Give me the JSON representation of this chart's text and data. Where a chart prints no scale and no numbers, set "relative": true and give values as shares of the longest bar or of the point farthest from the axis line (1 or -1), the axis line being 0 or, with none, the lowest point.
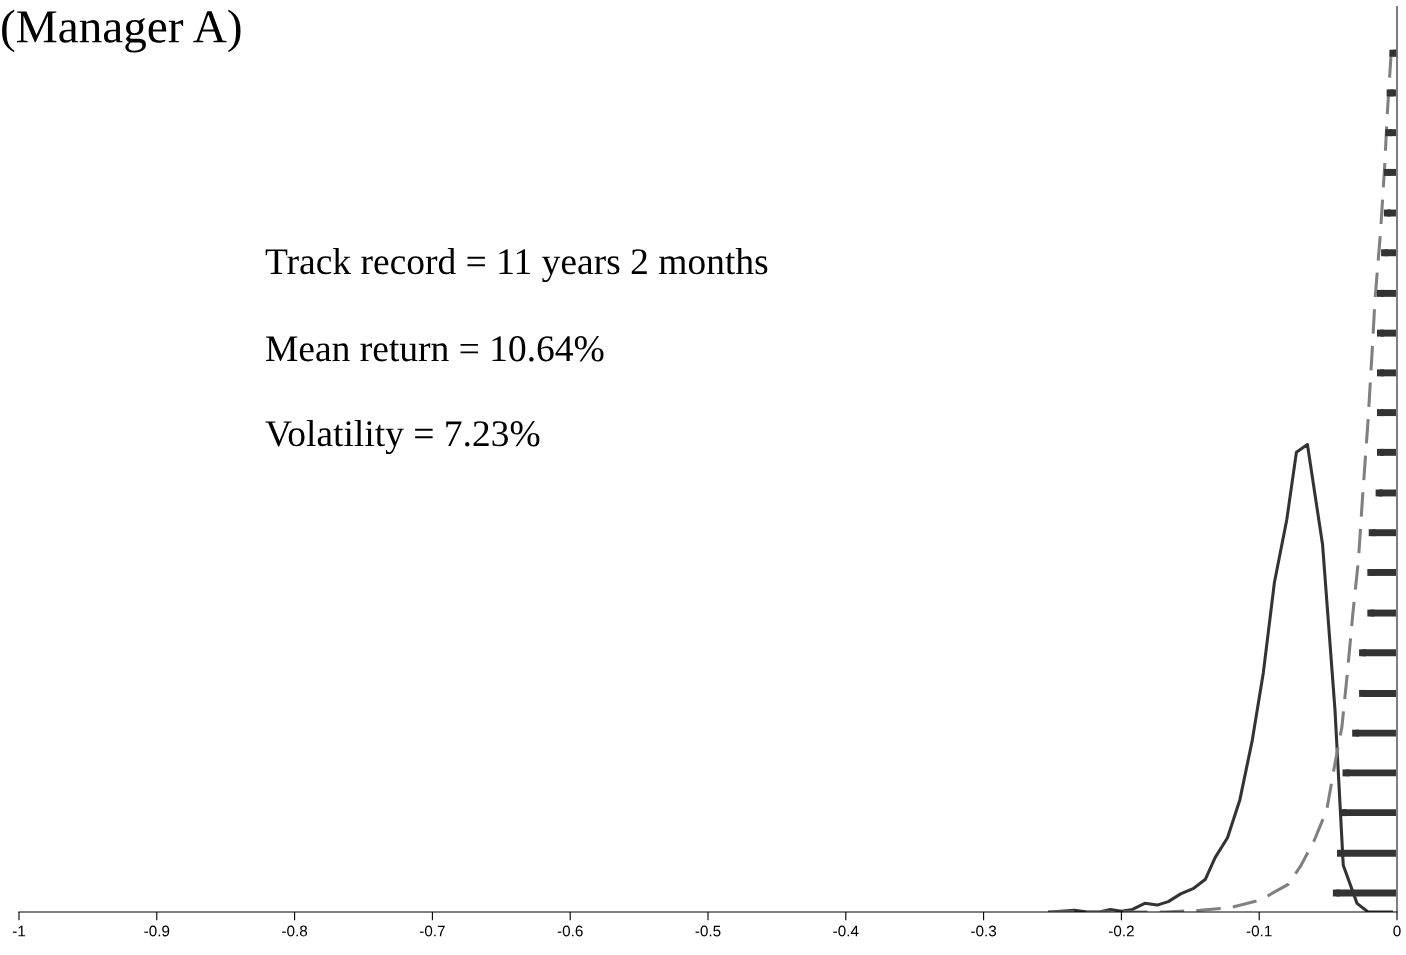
{
  "chart_data": {
    "type": "line",
    "title": "(Manager A)",
    "relative": true,
    "tick_labels": "x",
    "annotations": [
      "Track record = 11 years 2 months",
      "Mean return = 10.64%",
      "Volatility = 7.23%"
    ],
    "xlim": [
      -1,
      0
    ],
    "xticks": [
      -1,
      -0.9,
      -0.8,
      -0.7,
      -0.6,
      -0.5,
      -0.4,
      -0.3,
      -0.2,
      -0.1,
      0
    ],
    "grid": false,
    "legend": false,
    "marker": "none",
    "series": [
      {
        "color": "#333333",
        "line_style": "solid",
        "x": [
          -0.252,
          -0.234,
          -0.225,
          -0.216,
          -0.208,
          -0.2,
          -0.192,
          -0.183,
          -0.174,
          -0.166,
          -0.157,
          -0.148,
          -0.139,
          -0.132,
          -0.123,
          -0.114,
          -0.105,
          -0.097,
          -0.089,
          -0.08,
          -0.073,
          -0.065,
          -0.054,
          -0.045,
          -0.039,
          -0.029,
          -0.021,
          -0.004
        ],
        "values": [
          0,
          0.002,
          0,
          0,
          0.003,
          0.001,
          0.003,
          0.01,
          0.008,
          0.012,
          0.021,
          0.027,
          0.038,
          0.063,
          0.086,
          0.13,
          0.199,
          0.277,
          0.381,
          0.454,
          0.532,
          0.541,
          0.425,
          0.234,
          0.054,
          0.01,
          0,
          0
        ]
      },
      {
        "color": "#808080",
        "line_style": "dashed",
        "x": [
          -0.252,
          -0.168,
          -0.143,
          -0.121,
          -0.099,
          -0.079,
          -0.07,
          -0.06,
          -0.051,
          -0.045,
          -0.04,
          -0.036,
          -0.032,
          -0.028,
          -0.025,
          -0.021,
          -0.018,
          -0.016,
          -0.012,
          -0.009,
          -0.007,
          -0.004
        ],
        "values": [
          0,
          0,
          0.002,
          0.005,
          0.014,
          0.032,
          0.053,
          0.083,
          0.118,
          0.172,
          0.214,
          0.277,
          0.346,
          0.407,
          0.48,
          0.569,
          0.65,
          0.708,
          0.786,
          0.862,
          0.925,
          1.0
        ]
      },
      {
        "type": "scatter",
        "marker": "square",
        "color": "#333333",
        "x": [
          -0.003,
          -0.005,
          -0.006,
          -0.007,
          -0.007,
          -0.009,
          -0.012,
          -0.012,
          -0.012,
          -0.012,
          -0.012,
          -0.013,
          -0.018,
          -0.019,
          -0.019,
          -0.025,
          -0.025,
          -0.03,
          -0.037,
          -0.039,
          -0.041,
          -0.044
        ],
        "values": [
          0.994,
          0.948,
          0.902,
          0.856,
          0.809,
          0.763,
          0.716,
          0.67,
          0.624,
          0.578,
          0.532,
          0.485,
          0.439,
          0.393,
          0.346,
          0.3,
          0.253,
          0.207,
          0.161,
          0.115,
          0.068,
          0.022
        ],
        "xerrors": [
          [
            -0.003,
            0
          ],
          [
            -0.005,
            0
          ],
          [
            -0.006,
            0
          ],
          [
            -0.007,
            0
          ],
          [
            -0.007,
            0
          ],
          [
            -0.009,
            0
          ],
          [
            -0.012,
            0
          ],
          [
            -0.012,
            0
          ],
          [
            -0.012,
            0
          ],
          [
            -0.012,
            0
          ],
          [
            -0.012,
            0
          ],
          [
            -0.013,
            0
          ],
          [
            -0.018,
            0
          ],
          [
            -0.019,
            0
          ],
          [
            -0.019,
            0
          ],
          [
            -0.025,
            0
          ],
          [
            -0.025,
            0
          ],
          [
            -0.03,
            0
          ],
          [
            -0.037,
            0
          ],
          [
            -0.039,
            0
          ],
          [
            -0.041,
            0
          ],
          [
            -0.044,
            0
          ]
        ]
      }
    ]
  }
}
